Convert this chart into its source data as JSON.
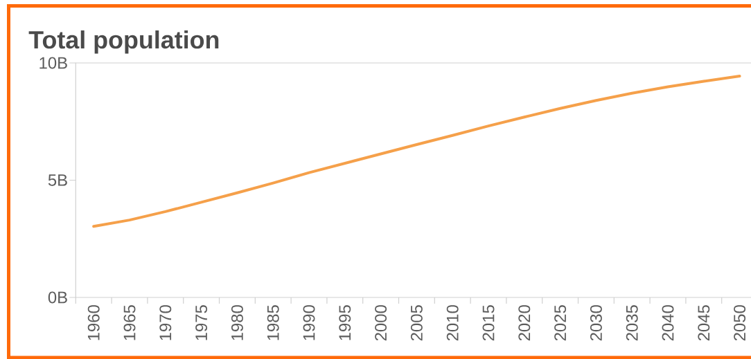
{
  "chart_data": {
    "type": "line",
    "title": "Total population",
    "categories": [
      "1960",
      "1965",
      "1970",
      "1975",
      "1980",
      "1985",
      "1990",
      "1995",
      "2000",
      "2005",
      "2010",
      "2015",
      "2020",
      "2025",
      "2030",
      "2035",
      "2040",
      "2045",
      "2050"
    ],
    "values": [
      3.03,
      3.3,
      3.66,
      4.06,
      4.46,
      4.88,
      5.32,
      5.72,
      6.12,
      6.52,
      6.91,
      7.31,
      7.69,
      8.06,
      8.4,
      8.71,
      8.98,
      9.22,
      9.44
    ],
    "color": "#f5a04a",
    "ylim": [
      0,
      10
    ],
    "yticks": [
      {
        "value": 0,
        "label": "0B"
      },
      {
        "value": 5,
        "label": "5B"
      },
      {
        "value": 10,
        "label": "10B"
      }
    ],
    "marker": "none",
    "line_style": "solid"
  }
}
